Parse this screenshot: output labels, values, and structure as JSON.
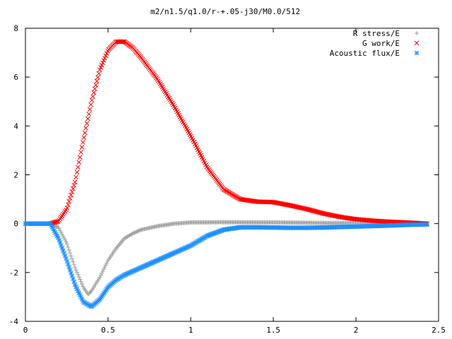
{
  "chart_data": {
    "type": "scatter",
    "title": "m2/n1.5/q1.0/r-+.05-j30/M0.0/512",
    "xlabel": "",
    "ylabel": "",
    "xlim": [
      0,
      2.5
    ],
    "ylim": [
      -4,
      8
    ],
    "x_ticks": [
      0,
      0.5,
      1,
      1.5,
      2,
      2.5
    ],
    "x_tick_labels": [
      "0",
      "0.5",
      "1",
      "1.5",
      "2",
      "2.5"
    ],
    "y_ticks": [
      -4,
      -2,
      0,
      2,
      4,
      6,
      8
    ],
    "y_tick_labels": [
      "-4",
      "-2",
      "0",
      "2",
      "4",
      "6",
      "8"
    ],
    "grid": false,
    "legend_position": "top-right",
    "series": [
      {
        "name": "R stress/E",
        "marker": "plus",
        "color": "#a0a0a0",
        "points": [
          [
            0.0,
            0.0
          ],
          [
            0.1,
            0.0
          ],
          [
            0.15,
            0.0
          ],
          [
            0.2,
            -0.15
          ],
          [
            0.25,
            -0.8
          ],
          [
            0.3,
            -1.8
          ],
          [
            0.35,
            -2.6
          ],
          [
            0.38,
            -2.9
          ],
          [
            0.4,
            -2.75
          ],
          [
            0.45,
            -2.2
          ],
          [
            0.5,
            -1.5
          ],
          [
            0.55,
            -1.0
          ],
          [
            0.6,
            -0.6
          ],
          [
            0.65,
            -0.4
          ],
          [
            0.7,
            -0.25
          ],
          [
            0.8,
            -0.1
          ],
          [
            0.9,
            0.0
          ],
          [
            1.0,
            0.05
          ],
          [
            1.2,
            0.06
          ],
          [
            1.5,
            0.05
          ],
          [
            1.8,
            0.03
          ],
          [
            2.0,
            0.02
          ],
          [
            2.2,
            0.01
          ],
          [
            2.43,
            0.0
          ]
        ]
      },
      {
        "name": "G work/E",
        "marker": "cross",
        "color": "#ff0000",
        "points": [
          [
            0.0,
            0.0
          ],
          [
            0.1,
            0.0
          ],
          [
            0.15,
            0.0
          ],
          [
            0.2,
            0.1
          ],
          [
            0.25,
            0.6
          ],
          [
            0.3,
            1.7
          ],
          [
            0.35,
            3.4
          ],
          [
            0.4,
            5.0
          ],
          [
            0.45,
            6.3
          ],
          [
            0.5,
            7.1
          ],
          [
            0.55,
            7.45
          ],
          [
            0.6,
            7.45
          ],
          [
            0.65,
            7.2
          ],
          [
            0.7,
            6.8
          ],
          [
            0.8,
            5.9
          ],
          [
            0.9,
            4.8
          ],
          [
            1.0,
            3.6
          ],
          [
            1.1,
            2.3
          ],
          [
            1.2,
            1.4
          ],
          [
            1.3,
            1.0
          ],
          [
            1.4,
            0.9
          ],
          [
            1.5,
            0.88
          ],
          [
            1.6,
            0.75
          ],
          [
            1.7,
            0.6
          ],
          [
            1.8,
            0.42
          ],
          [
            1.9,
            0.28
          ],
          [
            2.0,
            0.18
          ],
          [
            2.1,
            0.12
          ],
          [
            2.2,
            0.08
          ],
          [
            2.3,
            0.05
          ],
          [
            2.43,
            0.0
          ]
        ]
      },
      {
        "name": "Acoustic flux/E",
        "marker": "star",
        "color": "#1e90ff",
        "points": [
          [
            0.0,
            0.0
          ],
          [
            0.1,
            0.0
          ],
          [
            0.15,
            0.0
          ],
          [
            0.2,
            -0.6
          ],
          [
            0.25,
            -1.5
          ],
          [
            0.3,
            -2.5
          ],
          [
            0.35,
            -3.2
          ],
          [
            0.4,
            -3.4
          ],
          [
            0.45,
            -3.1
          ],
          [
            0.5,
            -2.6
          ],
          [
            0.55,
            -2.3
          ],
          [
            0.6,
            -2.1
          ],
          [
            0.7,
            -1.8
          ],
          [
            0.8,
            -1.5
          ],
          [
            0.9,
            -1.2
          ],
          [
            1.0,
            -0.9
          ],
          [
            1.1,
            -0.5
          ],
          [
            1.2,
            -0.25
          ],
          [
            1.3,
            -0.15
          ],
          [
            1.4,
            -0.15
          ],
          [
            1.5,
            -0.16
          ],
          [
            1.6,
            -0.17
          ],
          [
            1.7,
            -0.17
          ],
          [
            1.8,
            -0.16
          ],
          [
            1.9,
            -0.14
          ],
          [
            2.0,
            -0.12
          ],
          [
            2.1,
            -0.1
          ],
          [
            2.2,
            -0.08
          ],
          [
            2.3,
            -0.05
          ],
          [
            2.43,
            -0.03
          ]
        ]
      }
    ]
  }
}
